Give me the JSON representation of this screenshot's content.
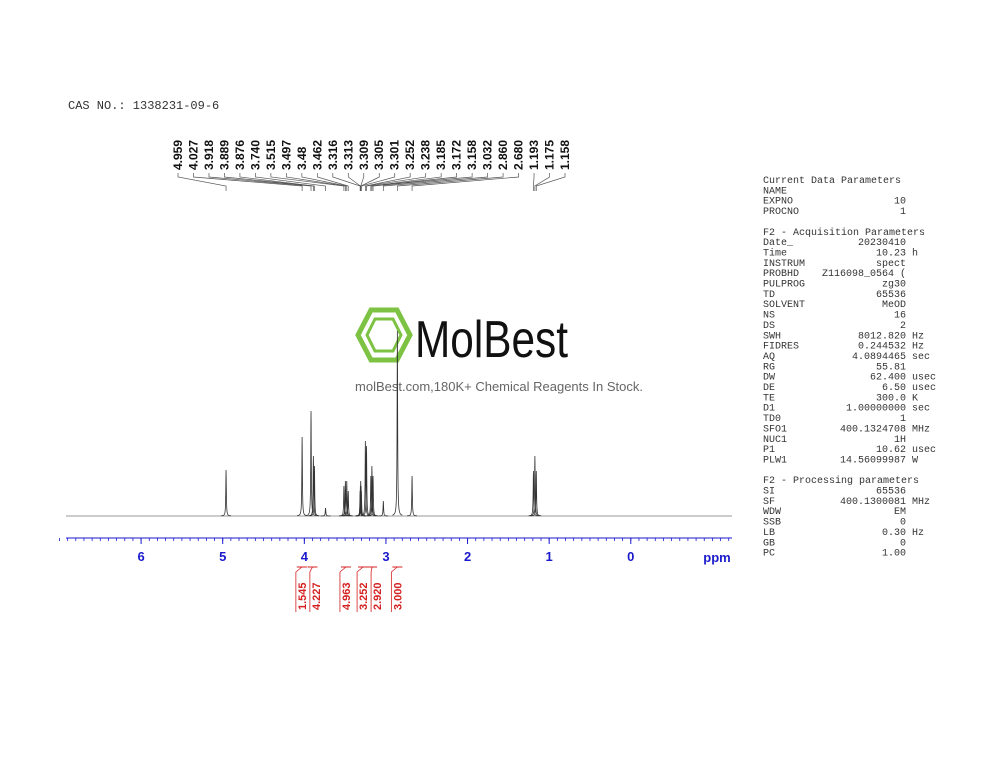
{
  "cas": "CAS NO.: 1338231-09-6",
  "watermark": {
    "brand": "MolBest",
    "tagline": "molBest.com,180K+ Chemical Reagents In Stock."
  },
  "chart_data": {
    "type": "nmr",
    "xlabel": "ppm",
    "xlim": [
      6.92,
      -1.24
    ],
    "xticks": [
      6,
      5,
      4,
      3,
      2,
      1,
      0
    ],
    "ylim": [
      0,
      200
    ],
    "color": "#333333",
    "axis_color": "#1a1acc",
    "x": [
      4.959,
      4.027,
      3.918,
      3.889,
      3.876,
      {
        "value": 3.74,
        "label": "3.740"
      },
      3.515,
      3.497,
      3.48,
      3.462,
      3.316,
      3.313,
      3.309,
      3.305,
      3.301,
      3.252,
      3.238,
      3.185,
      3.172,
      3.158,
      3.032,
      {
        "value": 2.86,
        "label": "2.860"
      },
      {
        "value": 2.68,
        "label": "2.680"
      },
      1.193,
      1.175,
      1.158
    ],
    "values": [
      46,
      79,
      105,
      60,
      50,
      8,
      30,
      35,
      35,
      25,
      25,
      30,
      35,
      30,
      25,
      75,
      70,
      40,
      50,
      40,
      15,
      185,
      40,
      45,
      60,
      45
    ],
    "integrals": {
      "color": "#d42020",
      "x": [
        4.03,
        3.9,
        3.49,
        3.28,
        3.17,
        2.86
      ],
      "values": [
        1.545,
        4.227,
        4.963,
        3.252,
        2.92,
        3
      ],
      "value_labels": [
        "1.545",
        "4.227",
        "4.963",
        "3.252",
        "2.920",
        "3.000"
      ]
    }
  },
  "parameters": [
    {
      "title": "Current Data Parameters",
      "rows": [
        {
          "key": "NAME"
        },
        {
          "key": "EXPNO",
          "value": "10"
        },
        {
          "key": "PROCNO",
          "value": "1"
        }
      ]
    },
    {
      "title": "F2 - Acquisition Parameters",
      "rows": [
        {
          "key": "Date_",
          "value": "20230410"
        },
        {
          "key": "Time",
          "value": "10.23",
          "unit": "h"
        },
        {
          "key": "INSTRUM",
          "value": "spect"
        },
        {
          "key": "PROBHD",
          "value": "Z116098_0564 ("
        },
        {
          "key": "PULPROG",
          "value": "zg30"
        },
        {
          "key": "TD",
          "value": "65536"
        },
        {
          "key": "SOLVENT",
          "value": "MeOD"
        },
        {
          "key": "NS",
          "value": "16"
        },
        {
          "key": "DS",
          "value": "2"
        },
        {
          "key": "SWH",
          "value": "8012.820",
          "unit": "Hz"
        },
        {
          "key": "FIDRES",
          "value": "0.244532",
          "unit": "Hz"
        },
        {
          "key": "AQ",
          "value": "4.0894465",
          "unit": "sec"
        },
        {
          "key": "RG",
          "value": "55.81"
        },
        {
          "key": "DW",
          "value": "62.400",
          "unit": "usec"
        },
        {
          "key": "DE",
          "value": "6.50",
          "unit": "usec"
        },
        {
          "key": "TE",
          "value": "300.0",
          "unit": "K"
        },
        {
          "key": "D1",
          "value": "1.00000000",
          "unit": "sec"
        },
        {
          "key": "TD0",
          "value": "1"
        },
        {
          "key": "SFO1",
          "value": "400.1324708",
          "unit": "MHz"
        },
        {
          "key": "NUC1",
          "value": "1H"
        },
        {
          "key": "P1",
          "value": "10.62",
          "unit": "usec"
        },
        {
          "key": "PLW1",
          "value": "14.56099987",
          "unit": "W"
        }
      ]
    },
    {
      "title": "F2 - Processing parameters",
      "rows": [
        {
          "key": "SI",
          "value": "65536"
        },
        {
          "key": "SF",
          "value": "400.1300081",
          "unit": "MHz"
        },
        {
          "key": "WDW",
          "value": "EM"
        },
        {
          "key": "SSB",
          "value": "0"
        },
        {
          "key": "LB",
          "value": "0.30",
          "unit": "Hz"
        },
        {
          "key": "GB",
          "value": "0"
        },
        {
          "key": "PC",
          "value": "1.00"
        }
      ]
    }
  ]
}
